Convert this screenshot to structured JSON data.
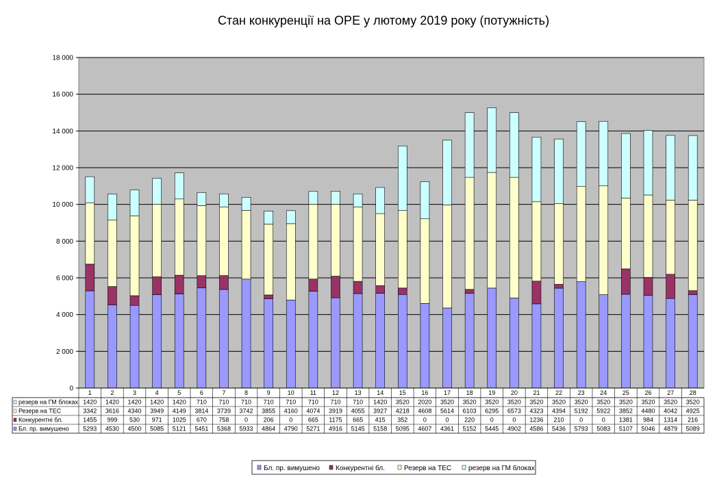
{
  "chart_data": {
    "type": "bar",
    "stacked": true,
    "title": "Стан конкуренції на ОРЕ  у лютому 2019 року (потужність)",
    "xlabel": "",
    "ylabel": "",
    "ylim": [
      0,
      18000
    ],
    "yticks": [
      0,
      2000,
      4000,
      6000,
      8000,
      10000,
      12000,
      14000,
      16000,
      18000
    ],
    "ytick_labels": [
      "0",
      "2 000",
      "4 000",
      "6 000",
      "8 000",
      "10 000",
      "12 000",
      "14 000",
      "16 000",
      "18 000"
    ],
    "grid": true,
    "legend": "bottom",
    "plot_background": "#c0c0c0",
    "categories": [
      "1",
      "2",
      "3",
      "4",
      "5",
      "6",
      "7",
      "8",
      "9",
      "10",
      "11",
      "12",
      "13",
      "14",
      "15",
      "16",
      "17",
      "18",
      "19",
      "20",
      "21",
      "22",
      "23",
      "24",
      "25",
      "26",
      "27",
      "28"
    ],
    "series": [
      {
        "name": "Бл. пр. вимушено",
        "color": "#9999ff",
        "values": [
          5293,
          4530,
          4500,
          5085,
          5121,
          5451,
          5368,
          5933,
          4864,
          4790,
          5271,
          4916,
          5145,
          5158,
          5095,
          4607,
          4361,
          5152,
          5445,
          4902,
          4586,
          5436,
          5793,
          5083,
          5107,
          5046,
          4879,
          5089
        ]
      },
      {
        "name": "Конкурентні бл.",
        "color": "#993366",
        "values": [
          1455,
          999,
          530,
          971,
          1025,
          670,
          758,
          0,
          206,
          0,
          665,
          1175,
          665,
          415,
          352,
          0,
          0,
          220,
          0,
          0,
          1236,
          210,
          0,
          0,
          1381,
          984,
          1314,
          216
        ]
      },
      {
        "name": "Резерв на ТЕС",
        "color": "#ffffcc",
        "values": [
          3342,
          3616,
          4340,
          3949,
          4149,
          3814,
          3739,
          3742,
          3855,
          4160,
          4074,
          3919,
          4055,
          3927,
          4218,
          4608,
          5614,
          6103,
          6295,
          6573,
          4323,
          4394,
          5192,
          5922,
          3852,
          4480,
          4042,
          4925
        ]
      },
      {
        "name": "резерв на ГМ блоках",
        "color": "#ccffff",
        "values": [
          1420,
          1420,
          1420,
          1420,
          1420,
          710,
          710,
          710,
          710,
          710,
          710,
          710,
          710,
          1420,
          3520,
          2020,
          3520,
          3520,
          3520,
          3520,
          3520,
          3520,
          3520,
          3520,
          3520,
          3520,
          3520,
          3520
        ]
      }
    ],
    "table_row_order": [
      3,
      2,
      1,
      0
    ]
  }
}
